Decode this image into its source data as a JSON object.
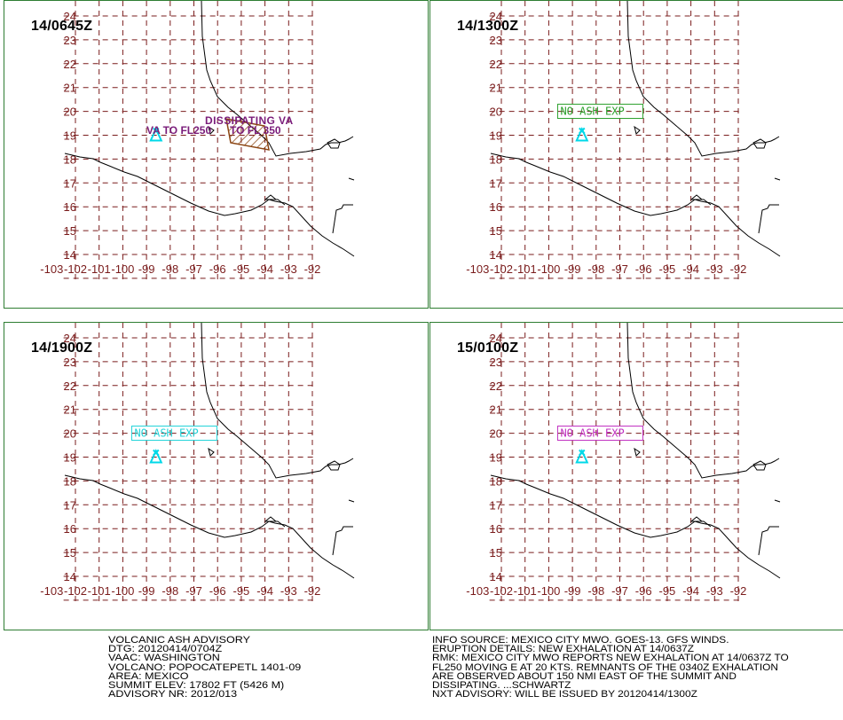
{
  "map": {
    "lat_labels": [
      "24",
      "23",
      "22",
      "21",
      "20",
      "19",
      "18",
      "17",
      "16",
      "15",
      "14"
    ],
    "lon_labels": [
      "-103",
      "-102",
      "-101",
      "-100",
      "-99",
      "-98",
      "-97",
      "-96",
      "-95",
      "-94",
      "-93",
      "-92"
    ],
    "grid_color": "#7a1c1c",
    "volcano_symbol_color": "#00d8e8",
    "volcano": {
      "lon": -98.6,
      "lat": 19.0
    }
  },
  "panels": [
    {
      "time": "14/0645Z",
      "annotations": {
        "dissipating_label": "DISSIPATING  VA",
        "va_fl250_label": "VA TO FL250",
        "fl350_label": "TO FL 350",
        "label_color": "#7a1c7a",
        "area_color": "#8b4513"
      }
    },
    {
      "time": "14/1300Z",
      "box_label": "NO ASH EXP",
      "box_color": "#2ca02c"
    },
    {
      "time": "14/1900Z",
      "box_label": "NO ASH EXP",
      "box_color": "#22d3d8"
    },
    {
      "time": "15/0100Z",
      "box_label": "NO ASH EXP",
      "box_color": "#c030c0"
    }
  ],
  "advisory": {
    "left_lines": [
      "VOLCANIC ASH ADVISORY",
      "DTG: 20120414/0704Z",
      "VAAC: WASHINGTON",
      "VOLCANO: POPOCATEPETL 1401-09",
      "AREA: MEXICO",
      "SUMMIT ELEV: 17802 FT (5426 M)",
      "ADVISORY NR: 2012/013"
    ],
    "right_lines": [
      "INFO SOURCE: MEXICO CITY MWO. GOES-13. GFS WINDS.",
      "ERUPTION DETAILS: NEW EXHALATION AT 14/0637Z",
      "RMK: MEXICO CITY MWO REPORTS NEW EXHALATION AT 14/0637Z TO",
      "FL250 MOVING E AT 20 KTS. REMNANTS OF THE 0340Z EXHALATION",
      "ARE OBSERVED ABOUT 150 NMI EAST OF THE SUMMIT AND",
      "DISSIPATING. ...SCHWARTZ",
      "NXT ADVISORY: WILL BE ISSUED BY 20120414/1300Z"
    ]
  }
}
